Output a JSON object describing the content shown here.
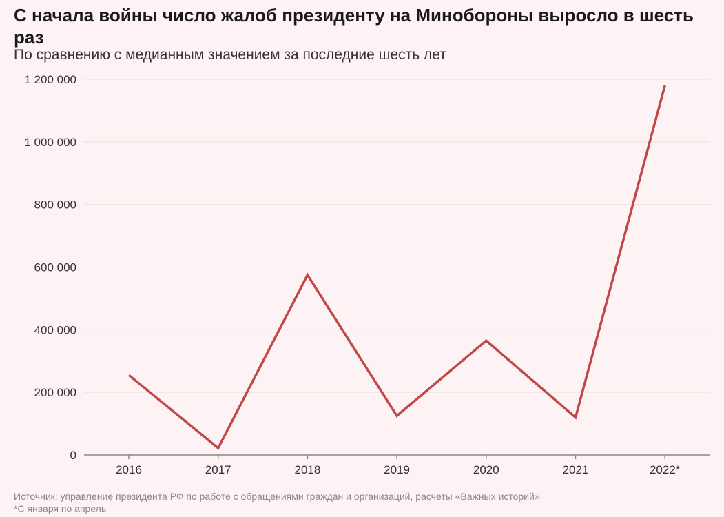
{
  "title": "С начала войны число жалоб президенту на Минобороны выросло в шесть раз",
  "subtitle": "По сравнению с медианным значением за последние шесть лет",
  "source": "Источник: управление президента РФ по работе с обращениями граждан и организаций, расчеты «Важных историй»",
  "footnote": "*С января по апрель",
  "colors": {
    "line": "#c0484a",
    "background": "#fdf3f4",
    "grid": "#f0dedf",
    "axis": "#888888"
  },
  "chart_data": {
    "type": "line",
    "title": "С начала войны число жалоб президенту на Минобороны выросло в шесть раз",
    "subtitle": "По сравнению с медианным значением за последние шесть лет",
    "xlabel": "",
    "ylabel": "",
    "categories": [
      "2016",
      "2017",
      "2018",
      "2019",
      "2020",
      "2021",
      "2022*"
    ],
    "values": [
      255000,
      22000,
      575000,
      125000,
      365000,
      120000,
      1180000
    ],
    "ylim": [
      0,
      1200000
    ],
    "yticks": [
      0,
      200000,
      400000,
      600000,
      800000,
      1000000,
      1200000
    ],
    "ytick_labels": [
      "0",
      "200 000",
      "400 000",
      "600 000",
      "800 000",
      "1 000 000",
      "1 200 000"
    ],
    "grid": true,
    "legend": "none"
  }
}
